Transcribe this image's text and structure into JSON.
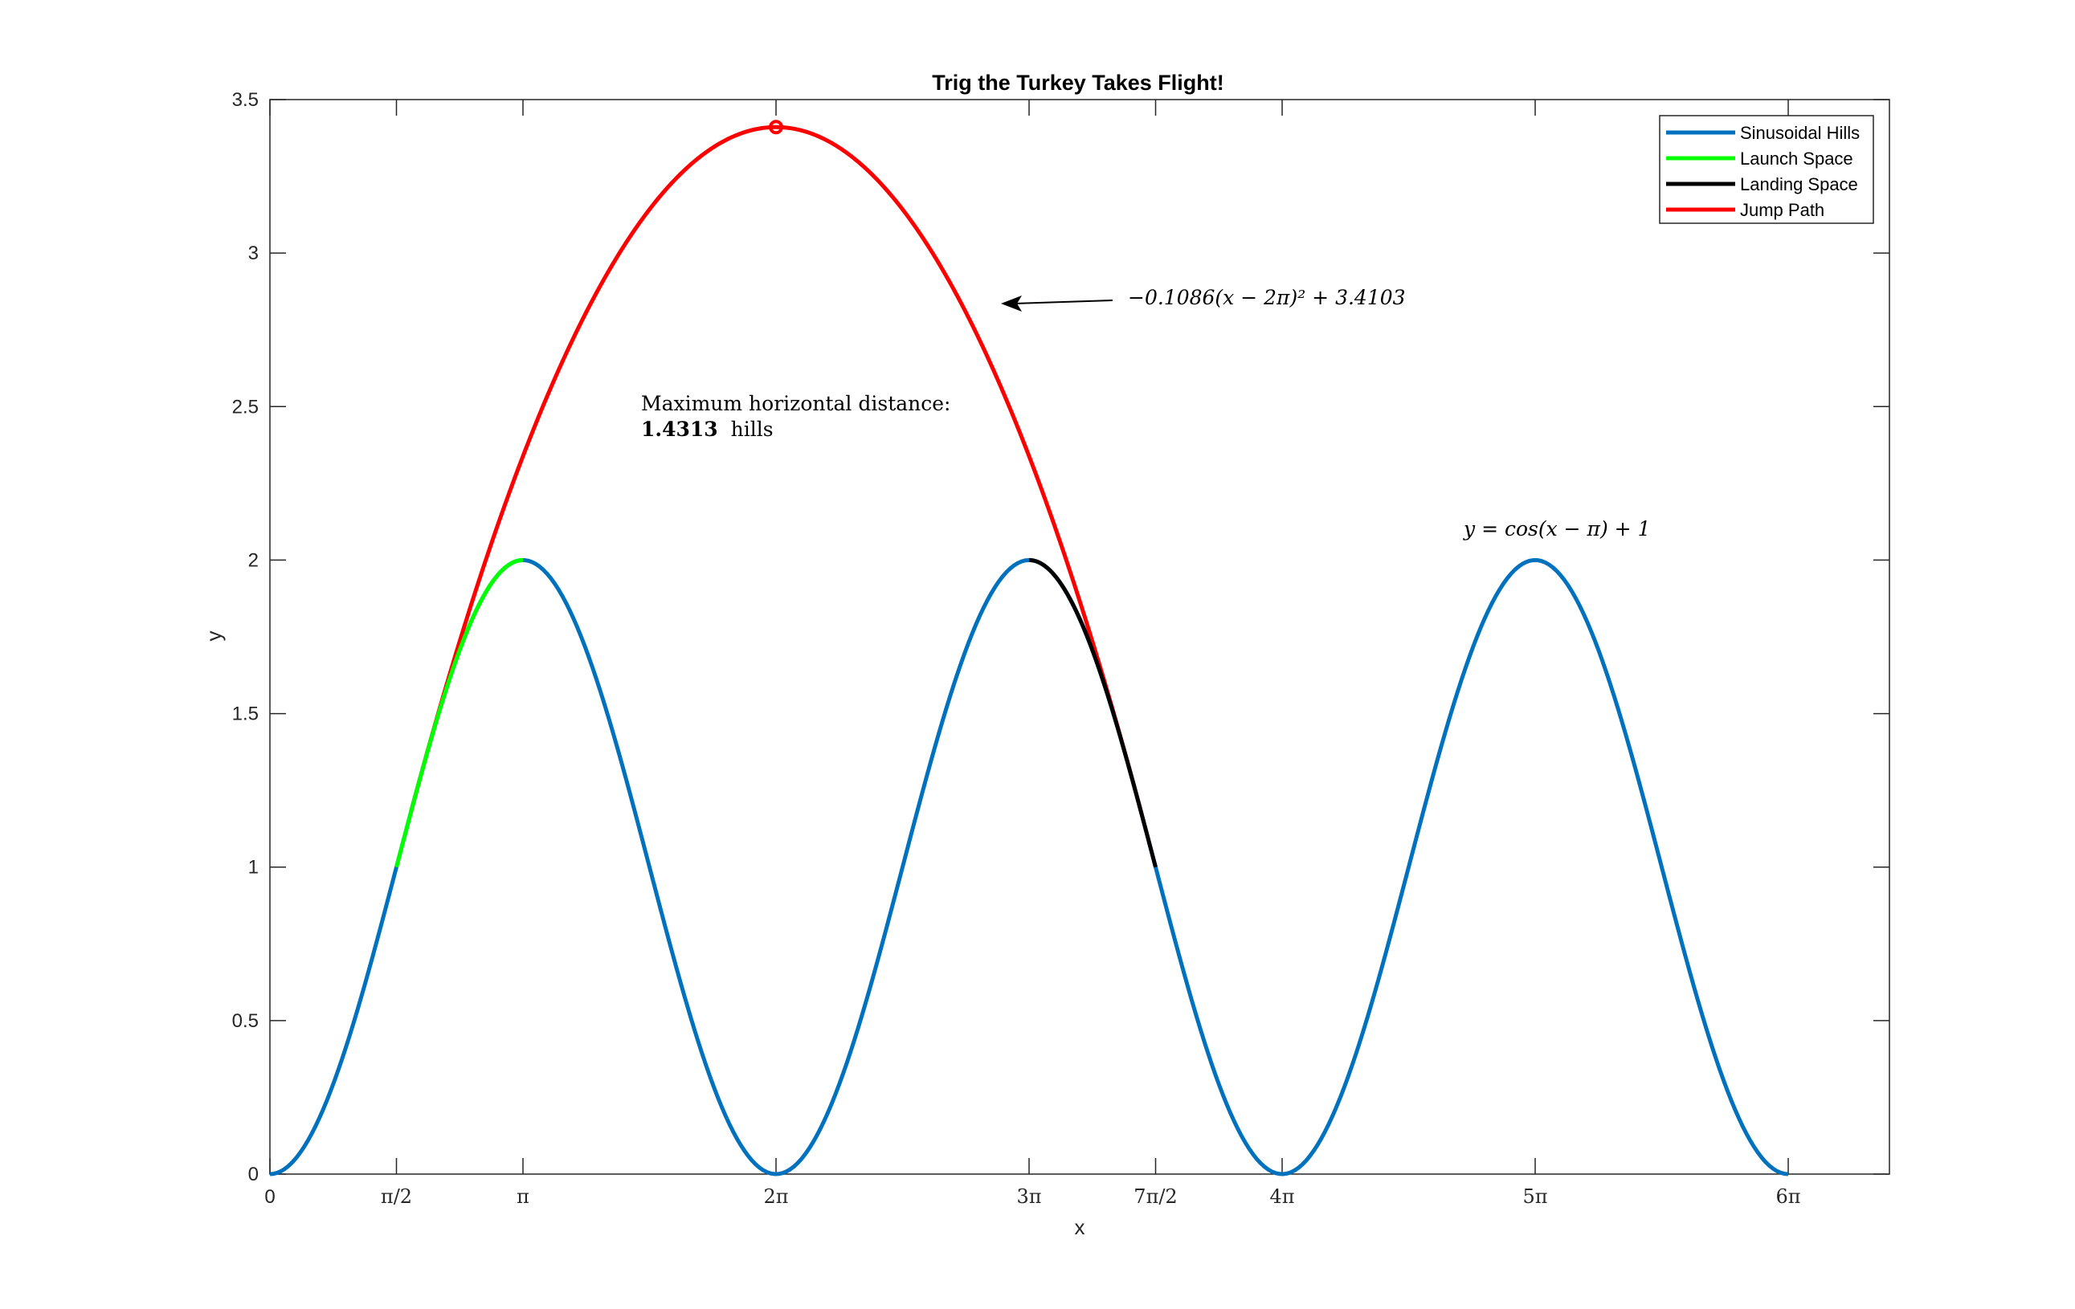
{
  "chart_data": {
    "type": "line",
    "title": "Trig the Turkey Takes Flight!",
    "xlabel": "x",
    "ylabel": "y",
    "xlim": [
      0,
      20.106
    ],
    "ylim": [
      0,
      3.5
    ],
    "xticks": [
      {
        "value": 0,
        "label": "0"
      },
      {
        "value": 1.5708,
        "label": "π/2"
      },
      {
        "value": 3.1416,
        "label": "π"
      },
      {
        "value": 6.2832,
        "label": "2π"
      },
      {
        "value": 9.4248,
        "label": "3π"
      },
      {
        "value": 10.9956,
        "label": "7π/2"
      },
      {
        "value": 12.5664,
        "label": "4π"
      },
      {
        "value": 15.708,
        "label": "5π"
      },
      {
        "value": 18.8496,
        "label": "6π"
      }
    ],
    "yticks": [
      {
        "value": 0,
        "label": "0"
      },
      {
        "value": 0.5,
        "label": "0.5"
      },
      {
        "value": 1,
        "label": "1"
      },
      {
        "value": 1.5,
        "label": "1.5"
      },
      {
        "value": 2,
        "label": "2"
      },
      {
        "value": 2.5,
        "label": "2.5"
      },
      {
        "value": 3,
        "label": "3"
      },
      {
        "value": 3.5,
        "label": "3.5"
      }
    ],
    "grid": false,
    "legend_position": "top-right",
    "series": [
      {
        "name": "Sinusoidal Hills",
        "color": "#0072BD",
        "function": "cos(x - π) + 1",
        "x_range": [
          0,
          18.8496
        ]
      },
      {
        "name": "Launch Space",
        "color": "#00FF00",
        "function": "cos(x - π) + 1",
        "x_range": [
          1.5708,
          3.1416
        ]
      },
      {
        "name": "Landing Space",
        "color": "#000000",
        "function": "cos(x - π) + 1",
        "x_range": [
          9.4248,
          10.9956
        ]
      },
      {
        "name": "Jump Path",
        "color": "#FF0000",
        "function": "-0.1086(x - 2π)^2 + 3.4103",
        "x_range": [
          1.75,
          10.82
        ]
      }
    ],
    "vertex_marker": {
      "x": 6.2832,
      "y": 3.4103,
      "color": "#FF0000"
    },
    "annotations": {
      "jump_equation": "−0.1086(x − 2π)² + 3.4103",
      "distance_line1": "Maximum horizontal distance:",
      "distance_value": "1.4313",
      "distance_unit": "hills",
      "hill_equation": "y = cos(x − π) + 1"
    }
  }
}
